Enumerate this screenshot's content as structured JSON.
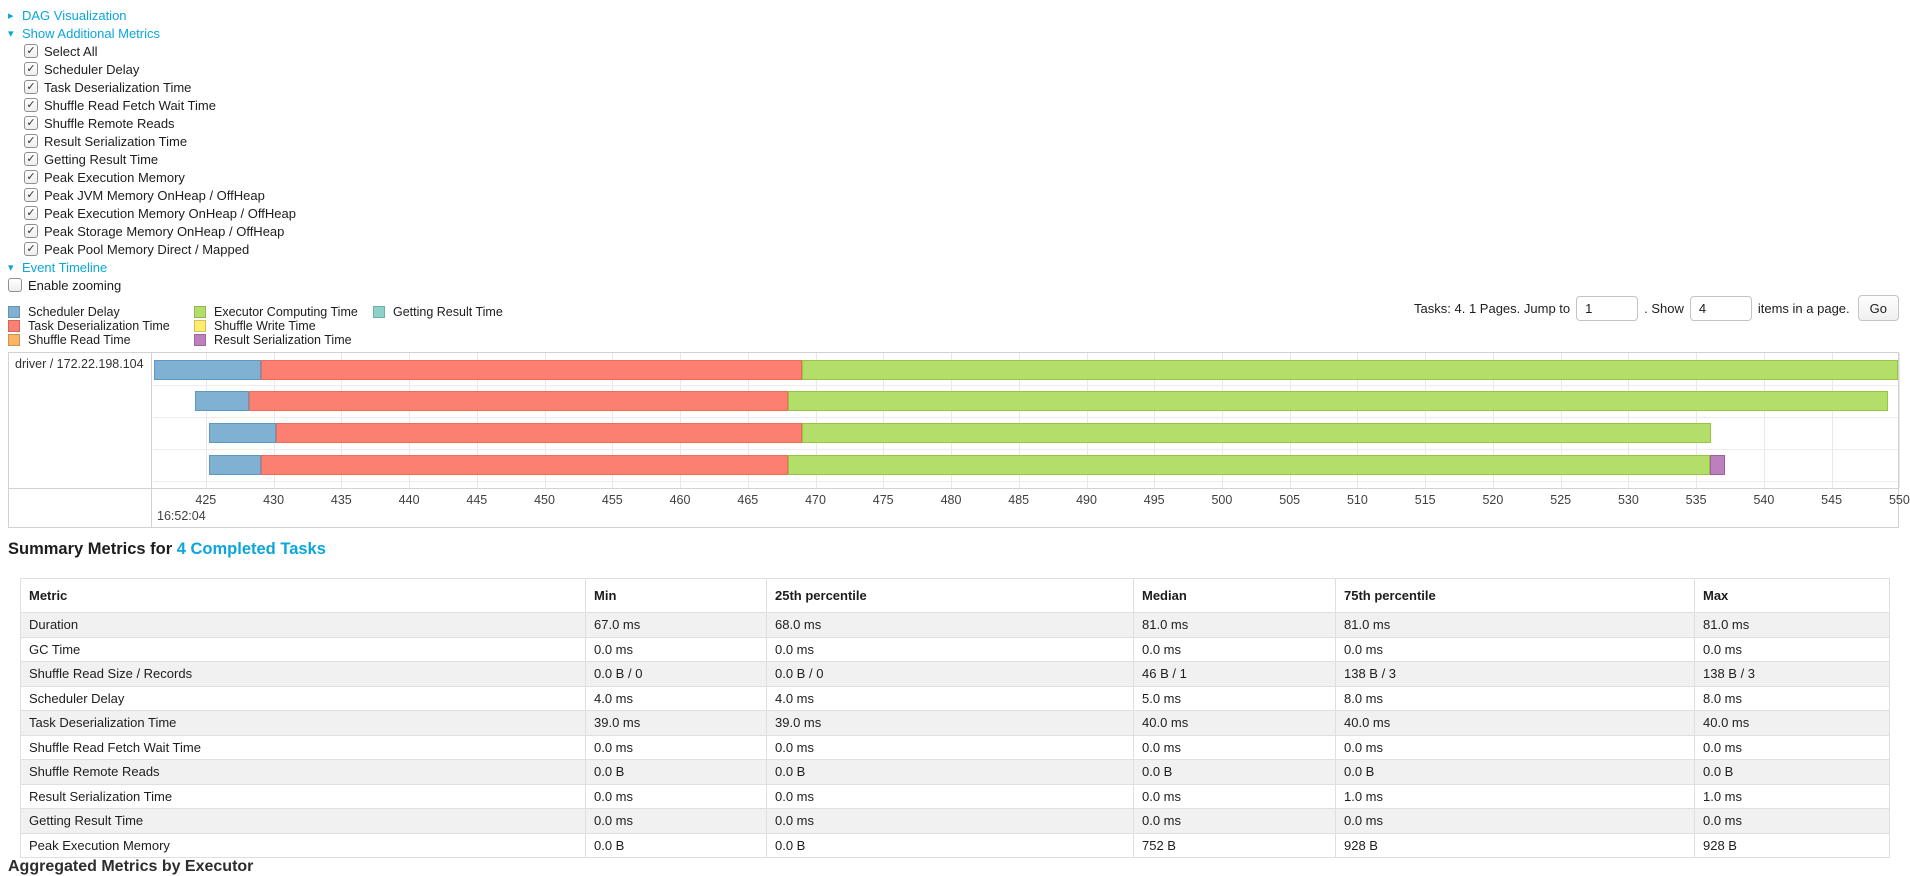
{
  "colors": {
    "link": "#0aa6dc",
    "grid": "#e8e8e8",
    "chart_border": "#d2d2d2"
  },
  "controls": {
    "dag": {
      "label": "DAG Visualization",
      "arrow": "▸"
    },
    "metrics": {
      "label": "Show Additional Metrics",
      "arrow": "▾",
      "items": [
        "Select All",
        "Scheduler Delay",
        "Task Deserialization Time",
        "Shuffle Read Fetch Wait Time",
        "Shuffle Remote Reads",
        "Result Serialization Time",
        "Getting Result Time",
        "Peak Execution Memory",
        "Peak JVM Memory OnHeap / OffHeap",
        "Peak Execution Memory OnHeap / OffHeap",
        "Peak Storage Memory OnHeap / OffHeap",
        "Peak Pool Memory Direct / Mapped"
      ]
    },
    "event_timeline": {
      "label": "Event Timeline",
      "arrow": "▾"
    },
    "enable_zooming": {
      "label": "Enable zooming",
      "checked": false
    }
  },
  "legend": {
    "columns": [
      [
        {
          "label": "Scheduler Delay",
          "color": "#80B1D3"
        },
        {
          "label": "Task Deserialization Time",
          "color": "#FB8072"
        },
        {
          "label": "Shuffle Read Time",
          "color": "#FDB462"
        }
      ],
      [
        {
          "label": "Executor Computing Time",
          "color": "#B3DE69"
        },
        {
          "label": "Shuffle Write Time",
          "color": "#FFED6F"
        },
        {
          "label": "Result Serialization Time",
          "color": "#BC80BD"
        }
      ],
      [
        {
          "label": "Getting Result Time",
          "color": "#8DD3C7"
        }
      ]
    ]
  },
  "pagination": {
    "tasks_text": "Tasks: 4. 1 Pages. Jump to",
    "jump_value": "1",
    "show_text": ". Show",
    "show_value": "4",
    "items_text": "items in a page.",
    "go_label": "Go"
  },
  "chart_data": {
    "type": "timeline",
    "row_label": "driver / 172.22.198.104",
    "x_axis": {
      "base_time": "16:52:04",
      "unit": "ms",
      "domain": [
        421.1,
        549.9
      ],
      "ticks": [
        425,
        430,
        435,
        440,
        445,
        450,
        455,
        460,
        465,
        470,
        475,
        480,
        485,
        490,
        495,
        500,
        505,
        510,
        515,
        520,
        525,
        530,
        535,
        540,
        545,
        550
      ]
    },
    "series_colors": {
      "scheduler_delay": {
        "fill": "#80B1D3",
        "border": "#5e97bf"
      },
      "task_deserialization": {
        "fill": "#FB8072",
        "border": "#ef6a5a"
      },
      "shuffle_read": {
        "fill": "#FDB462",
        "border": "#eea04a"
      },
      "executor_computing": {
        "fill": "#B3DE69",
        "border": "#98c53f"
      },
      "shuffle_write": {
        "fill": "#FFED6F",
        "border": "#e8d653"
      },
      "result_serialization": {
        "fill": "#BC80BD",
        "border": "#a05ea2"
      },
      "getting_result": {
        "fill": "#8DD3C7",
        "border": "#6fbcae"
      }
    },
    "tasks": [
      {
        "segments": [
          {
            "type": "scheduler_delay",
            "start": 421.2,
            "end": 429.1
          },
          {
            "type": "task_deserialization",
            "start": 429.1,
            "end": 469.0
          },
          {
            "type": "executor_computing",
            "start": 469.0,
            "end": 549.9
          }
        ]
      },
      {
        "segments": [
          {
            "type": "scheduler_delay",
            "start": 424.2,
            "end": 428.2
          },
          {
            "type": "task_deserialization",
            "start": 428.2,
            "end": 468.0
          },
          {
            "type": "executor_computing",
            "start": 468.0,
            "end": 549.2
          }
        ]
      },
      {
        "segments": [
          {
            "type": "scheduler_delay",
            "start": 425.2,
            "end": 430.2
          },
          {
            "type": "task_deserialization",
            "start": 430.2,
            "end": 469.0
          },
          {
            "type": "executor_computing",
            "start": 469.0,
            "end": 536.1
          }
        ]
      },
      {
        "segments": [
          {
            "type": "scheduler_delay",
            "start": 425.2,
            "end": 429.1
          },
          {
            "type": "task_deserialization",
            "start": 429.1,
            "end": 468.0
          },
          {
            "type": "executor_computing",
            "start": 468.0,
            "end": 536.0
          },
          {
            "type": "result_serialization",
            "start": 536.0,
            "end": 537.1
          }
        ]
      }
    ]
  },
  "summary": {
    "title_prefix": "Summary Metrics for ",
    "title_link": "4 Completed Tasks",
    "table": {
      "headers": [
        "Metric",
        "Min",
        "25th percentile",
        "Median",
        "75th percentile",
        "Max"
      ],
      "rows": [
        [
          "Duration",
          "67.0 ms",
          "68.0 ms",
          "81.0 ms",
          "81.0 ms",
          "81.0 ms"
        ],
        [
          "GC Time",
          "0.0 ms",
          "0.0 ms",
          "0.0 ms",
          "0.0 ms",
          "0.0 ms"
        ],
        [
          "Shuffle Read Size / Records",
          "0.0 B / 0",
          "0.0 B / 0",
          "46 B / 1",
          "138 B / 3",
          "138 B / 3"
        ],
        [
          "Scheduler Delay",
          "4.0 ms",
          "4.0 ms",
          "5.0 ms",
          "8.0 ms",
          "8.0 ms"
        ],
        [
          "Task Deserialization Time",
          "39.0 ms",
          "39.0 ms",
          "40.0 ms",
          "40.0 ms",
          "40.0 ms"
        ],
        [
          "Shuffle Read Fetch Wait Time",
          "0.0 ms",
          "0.0 ms",
          "0.0 ms",
          "0.0 ms",
          "0.0 ms"
        ],
        [
          "Shuffle Remote Reads",
          "0.0 B",
          "0.0 B",
          "0.0 B",
          "0.0 B",
          "0.0 B"
        ],
        [
          "Result Serialization Time",
          "0.0 ms",
          "0.0 ms",
          "0.0 ms",
          "1.0 ms",
          "1.0 ms"
        ],
        [
          "Getting Result Time",
          "0.0 ms",
          "0.0 ms",
          "0.0 ms",
          "0.0 ms",
          "0.0 ms"
        ],
        [
          "Peak Execution Memory",
          "0.0 B",
          "0.0 B",
          "752 B",
          "928 B",
          "928 B"
        ]
      ]
    }
  },
  "next_section": {
    "label": "Aggregated Metrics by Executor"
  }
}
